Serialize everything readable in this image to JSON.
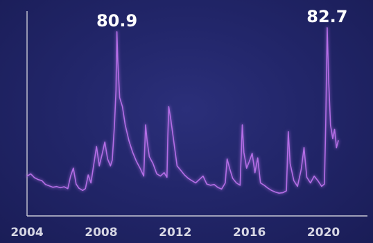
{
  "chart_data": {
    "type": "line",
    "title": "",
    "xlabel": "",
    "ylabel": "",
    "grid": false,
    "legend": "none",
    "xlim": [
      2004,
      2022
    ],
    "ylim": [
      0,
      90
    ],
    "x_ticks": [
      "2004",
      "2008",
      "2012",
      "2016",
      "2020"
    ],
    "annotations": [
      {
        "text": "80.9",
        "x": 2008.85,
        "y": 80.9
      },
      {
        "text": "82.7",
        "x": 2020.2,
        "y": 82.7
      }
    ],
    "series": [
      {
        "color": "#b46ee6",
        "points": [
          [
            2004.0,
            17.5
          ],
          [
            2004.2,
            18.5
          ],
          [
            2004.4,
            16.8
          ],
          [
            2004.6,
            16.0
          ],
          [
            2004.8,
            15.5
          ],
          [
            2005.0,
            13.8
          ],
          [
            2005.2,
            13.2
          ],
          [
            2005.4,
            12.6
          ],
          [
            2005.6,
            12.9
          ],
          [
            2005.8,
            12.4
          ],
          [
            2006.0,
            12.8
          ],
          [
            2006.2,
            12.0
          ],
          [
            2006.35,
            17.5
          ],
          [
            2006.5,
            21.0
          ],
          [
            2006.65,
            14.0
          ],
          [
            2006.8,
            12.2
          ],
          [
            2007.0,
            11.2
          ],
          [
            2007.15,
            12.0
          ],
          [
            2007.3,
            18.0
          ],
          [
            2007.45,
            14.5
          ],
          [
            2007.6,
            22.5
          ],
          [
            2007.75,
            30.5
          ],
          [
            2007.9,
            22.0
          ],
          [
            2008.05,
            27.0
          ],
          [
            2008.2,
            32.5
          ],
          [
            2008.35,
            25.0
          ],
          [
            2008.5,
            22.0
          ],
          [
            2008.6,
            24.5
          ],
          [
            2008.72,
            40.0
          ],
          [
            2008.8,
            55.0
          ],
          [
            2008.85,
            80.9
          ],
          [
            2008.9,
            68.0
          ],
          [
            2009.0,
            52.0
          ],
          [
            2009.15,
            48.0
          ],
          [
            2009.3,
            40.0
          ],
          [
            2009.5,
            33.0
          ],
          [
            2009.7,
            28.0
          ],
          [
            2009.9,
            24.0
          ],
          [
            2010.1,
            21.0
          ],
          [
            2010.3,
            17.5
          ],
          [
            2010.4,
            40.0
          ],
          [
            2010.48,
            33.0
          ],
          [
            2010.6,
            26.0
          ],
          [
            2010.8,
            23.0
          ],
          [
            2011.0,
            18.5
          ],
          [
            2011.2,
            17.5
          ],
          [
            2011.4,
            19.0
          ],
          [
            2011.55,
            17.0
          ],
          [
            2011.6,
            35.0
          ],
          [
            2011.65,
            48.0
          ],
          [
            2011.75,
            43.0
          ],
          [
            2011.9,
            34.0
          ],
          [
            2012.1,
            22.0
          ],
          [
            2012.3,
            20.0
          ],
          [
            2012.5,
            18.0
          ],
          [
            2012.7,
            16.5
          ],
          [
            2012.9,
            15.5
          ],
          [
            2013.1,
            14.5
          ],
          [
            2013.3,
            16.0
          ],
          [
            2013.5,
            17.5
          ],
          [
            2013.7,
            14.0
          ],
          [
            2013.9,
            13.5
          ],
          [
            2014.1,
            13.8
          ],
          [
            2014.3,
            12.5
          ],
          [
            2014.5,
            11.8
          ],
          [
            2014.7,
            14.5
          ],
          [
            2014.8,
            25.0
          ],
          [
            2014.95,
            20.5
          ],
          [
            2015.1,
            16.5
          ],
          [
            2015.3,
            14.5
          ],
          [
            2015.5,
            13.5
          ],
          [
            2015.62,
            40.0
          ],
          [
            2015.7,
            28.0
          ],
          [
            2015.85,
            21.0
          ],
          [
            2016.0,
            24.0
          ],
          [
            2016.15,
            27.5
          ],
          [
            2016.3,
            19.0
          ],
          [
            2016.45,
            25.5
          ],
          [
            2016.6,
            14.5
          ],
          [
            2016.8,
            13.5
          ],
          [
            2017.0,
            12.2
          ],
          [
            2017.2,
            11.2
          ],
          [
            2017.4,
            10.5
          ],
          [
            2017.6,
            10.0
          ],
          [
            2017.8,
            10.2
          ],
          [
            2018.0,
            11.0
          ],
          [
            2018.1,
            37.0
          ],
          [
            2018.2,
            23.0
          ],
          [
            2018.4,
            15.5
          ],
          [
            2018.6,
            13.0
          ],
          [
            2018.8,
            20.5
          ],
          [
            2018.95,
            30.0
          ],
          [
            2019.1,
            17.0
          ],
          [
            2019.3,
            14.5
          ],
          [
            2019.5,
            17.5
          ],
          [
            2019.7,
            15.5
          ],
          [
            2019.9,
            13.0
          ],
          [
            2020.05,
            14.0
          ],
          [
            2020.12,
            40.0
          ],
          [
            2020.2,
            82.7
          ],
          [
            2020.28,
            60.0
          ],
          [
            2020.38,
            40.0
          ],
          [
            2020.5,
            34.0
          ],
          [
            2020.6,
            38.0
          ],
          [
            2020.7,
            30.0
          ],
          [
            2020.8,
            33.0
          ]
        ]
      }
    ]
  }
}
